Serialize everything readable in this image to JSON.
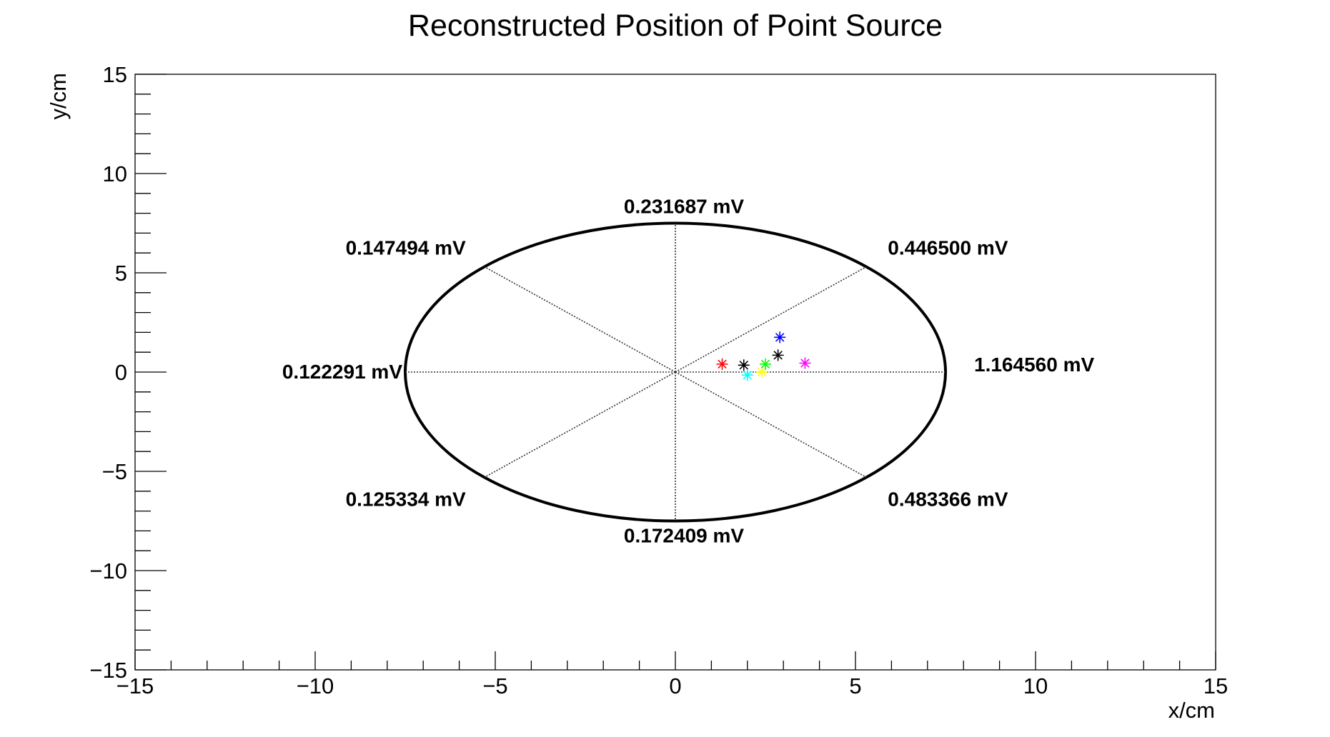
{
  "chart_data": {
    "type": "scatter",
    "title": "Reconstructed Position of Point Source",
    "xlabel": "x/cm",
    "ylabel": "y/cm",
    "xlim": [
      -15,
      15
    ],
    "ylim": [
      -15,
      15
    ],
    "x_ticks": [
      -15,
      -10,
      -5,
      0,
      5,
      10,
      15
    ],
    "x_tick_labels": [
      "−15",
      "−10",
      "−5",
      "0",
      "5",
      "10",
      "15"
    ],
    "y_ticks": [
      -15,
      -10,
      -5,
      0,
      5,
      10,
      15
    ],
    "y_tick_labels": [
      "−15",
      "−10",
      "−5",
      "0",
      "5",
      "10",
      "15"
    ],
    "grid": false,
    "detector_ring": {
      "center": [
        0,
        0
      ],
      "radius": 7.5
    },
    "channels": [
      {
        "angle_deg": 0,
        "label": "1.164560 mV"
      },
      {
        "angle_deg": 45,
        "label": "0.446500 mV"
      },
      {
        "angle_deg": 90,
        "label": "0.231687 mV"
      },
      {
        "angle_deg": 135,
        "label": "0.147494 mV"
      },
      {
        "angle_deg": 180,
        "label": "0.122291 mV"
      },
      {
        "angle_deg": 225,
        "label": "0.125334 mV"
      },
      {
        "angle_deg": 270,
        "label": "0.172409 mV"
      },
      {
        "angle_deg": 315,
        "label": "0.483366 mV"
      }
    ],
    "points": [
      {
        "x": 1.3,
        "y": 0.4,
        "color": "#ff0000"
      },
      {
        "x": 1.9,
        "y": 0.35,
        "color": "#000000"
      },
      {
        "x": 2.0,
        "y": -0.15,
        "color": "#00ffff"
      },
      {
        "x": 2.4,
        "y": 0.0,
        "color": "#ffff00"
      },
      {
        "x": 2.5,
        "y": 0.4,
        "color": "#00ff00"
      },
      {
        "x": 2.85,
        "y": 0.85,
        "color": "#000000"
      },
      {
        "x": 2.9,
        "y": 1.75,
        "color": "#0000ff"
      },
      {
        "x": 3.6,
        "y": 0.45,
        "color": "#ff00ff"
      }
    ]
  }
}
